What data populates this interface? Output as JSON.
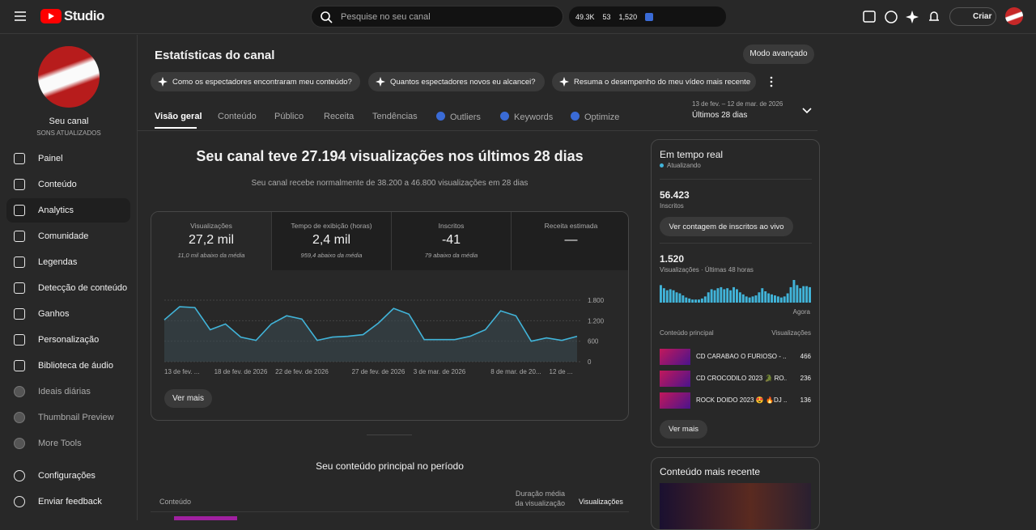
{
  "topbar": {
    "logo": "Studio",
    "search_placeholder": "Pesquise no seu canal",
    "stats": [
      "49.3K",
      "53",
      "1,520"
    ],
    "create": "Criar"
  },
  "sidebar": {
    "channel_name": "Seu canal",
    "channel_sub": "SONS ATUALIZADOS",
    "nav": [
      "Painel",
      "Conteúdo",
      "Analytics",
      "Comunidade",
      "Legendas",
      "Detecção de conteúdo",
      "Ganhos",
      "Personalização",
      "Biblioteca de áudio",
      "Ideais diárias",
      "Thumbnail Preview",
      "More Tools"
    ],
    "footer": [
      "Configurações",
      "Enviar feedback"
    ]
  },
  "header": {
    "title": "Estatísticas do canal",
    "advanced": "Modo avançado",
    "prompts": [
      "Como os espectadores encontraram meu conteúdo?",
      "Quantos espectadores novos eu alcancei?",
      "Resuma o desempenho do meu vídeo mais recente"
    ],
    "tabs": [
      "Visão geral",
      "Conteúdo",
      "Público",
      "Receita",
      "Tendências",
      "Outliers",
      "Keywords",
      "Optimize"
    ],
    "date_range": "13 de fev. – 12 de mar. de 2026",
    "period": "Últimos 28 dias"
  },
  "overview": {
    "headline": "Seu canal teve 27.194 visualizações nos últimos 28 dias",
    "subtext": "Seu canal recebe normalmente de 38.200 a 46.800 visualizações em 28 dias",
    "metrics": [
      {
        "label": "Visualizações",
        "value": "27,2 mil",
        "note": "11,0 mil abaixo da média"
      },
      {
        "label": "Tempo de exibição (horas)",
        "value": "2,4 mil",
        "note": "959,4 abaixo da média"
      },
      {
        "label": "Inscritos",
        "value": "-41",
        "note": "79 abaixo da média"
      },
      {
        "label": "Receita estimada",
        "value": "—"
      }
    ],
    "see_more": "Ver mais"
  },
  "chart_data": [
    {
      "type": "line",
      "color": "#41b4d9",
      "categories": [
        "13 de fev. ...",
        null,
        null,
        null,
        null,
        "18 de fev. de 2026",
        null,
        null,
        null,
        "22 de fev. de 2026",
        null,
        null,
        null,
        null,
        "27 de fev. de 2026",
        null,
        null,
        null,
        "3 de mar. de 2026",
        null,
        null,
        null,
        null,
        "8 de mar. de 20...",
        null,
        null,
        null,
        "12 de ..."
      ],
      "values": [
        1224,
        1608,
        1584,
        936,
        1104,
        720,
        624,
        1104,
        1344,
        1248,
        624,
        720,
        744,
        792,
        1128,
        1560,
        1392,
        648,
        648,
        648,
        744,
        936,
        1488,
        1344,
        600,
        696,
        624,
        744
      ],
      "ylim": [
        0,
        1800
      ],
      "yticks": [
        0,
        600,
        {
          "value": 1200,
          "label": "1.200"
        },
        {
          "value": 1800,
          "label": "1.800"
        }
      ],
      "grid": true
    },
    {
      "type": "bar",
      "color": "#41b4d9",
      "xlabel": "Agora",
      "values": [
        51,
        42,
        36,
        39,
        36,
        30,
        27,
        21,
        15,
        12,
        9,
        9,
        9,
        12,
        18,
        30,
        39,
        36,
        42,
        45,
        39,
        42,
        36,
        45,
        39,
        30,
        24,
        18,
        15,
        18,
        21,
        30,
        42,
        33,
        27,
        24,
        21,
        18,
        15,
        18,
        27,
        45,
        66,
        51,
        42,
        48,
        48,
        45
      ]
    }
  ],
  "realtime": {
    "title": "Em tempo real",
    "status": "Atualizando",
    "subscribers": "56.423",
    "subscribers_label": "Inscritos",
    "live_button": "Ver contagem de inscritos ao vivo",
    "views": "1.520",
    "views_label": "Visualizações · Últimas 48 horas",
    "top_header": [
      "Conteúdo principal",
      "Visualizações"
    ],
    "top_items": [
      {
        "title": "CD CARABAO O FURIOSO - ...",
        "views": "466"
      },
      {
        "title": "CD CROCODILO 2023 🐊 RO...",
        "views": "236"
      },
      {
        "title": "ROCK DOIDO 2023 😍 🔥DJ ...",
        "views": "136"
      }
    ],
    "see_more": "Ver mais"
  },
  "latest": {
    "title": "Conteúdo mais recente"
  },
  "top_content": {
    "title": "Seu conteúdo principal no período",
    "columns": [
      "Conteúdo",
      "Duração média da visualização",
      "Visualizações"
    ]
  }
}
